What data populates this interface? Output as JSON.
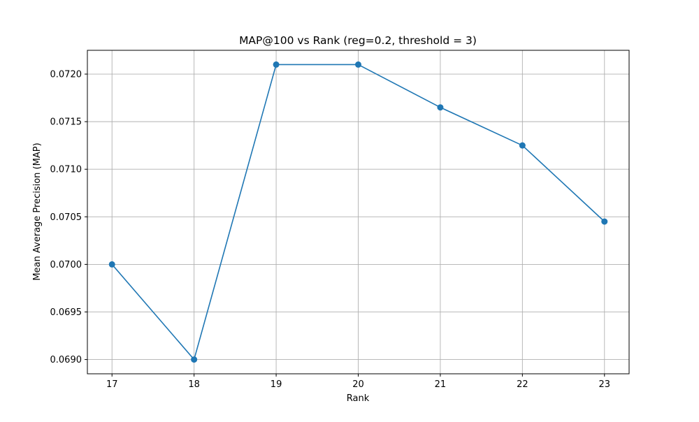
{
  "chart_data": {
    "type": "line",
    "title": "MAP@100 vs Rank (reg=0.2, threshold = 3)",
    "xlabel": "Rank",
    "ylabel": "Mean Average Precision (MAP)",
    "x": [
      17,
      18,
      19,
      20,
      21,
      22,
      23
    ],
    "series": [
      {
        "values": [
          0.07,
          0.069,
          0.0721,
          0.0721,
          0.07165,
          0.07125,
          0.07045
        ],
        "color": "#1f77b4",
        "marker": "circle"
      }
    ],
    "xlim": [
      16.7,
      23.3
    ],
    "ylim": [
      0.06885,
      0.07225
    ],
    "xticks": [
      17,
      18,
      19,
      20,
      21,
      22,
      23
    ],
    "xtick_labels": [
      "17",
      "18",
      "19",
      "20",
      "21",
      "22",
      "23"
    ],
    "yticks": [
      0.069,
      0.0695,
      0.07,
      0.0705,
      0.071,
      0.0715,
      0.072
    ],
    "ytick_labels": [
      "0.0690",
      "0.0695",
      "0.0700",
      "0.0705",
      "0.0710",
      "0.0715",
      "0.0720"
    ],
    "grid": true,
    "legend": false
  }
}
